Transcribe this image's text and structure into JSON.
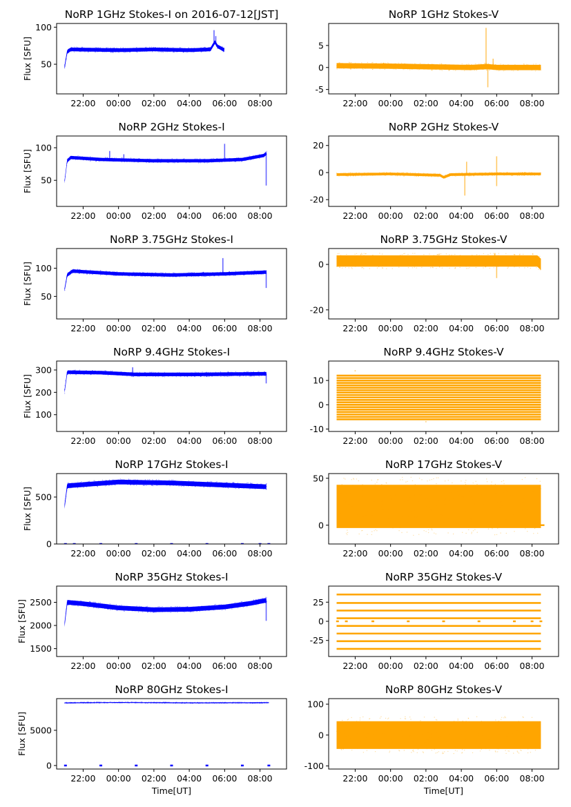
{
  "figure": {
    "xtick_labels": [
      "22:00",
      "00:00",
      "02:00",
      "04:00",
      "06:00",
      "08:00"
    ],
    "xlabel": "Time[UT]",
    "ylabel_I": "Flux [SFU]",
    "colors": {
      "stokes_i": "#0000ff",
      "stokes_v": "#ffa500",
      "axes": "#000000"
    }
  },
  "chart_data": [
    {
      "id": "i1",
      "type": "scatter",
      "title": "NoRP 1GHz Stokes-I on 2016-07-12[JST]",
      "ylabel": "Flux [SFU]",
      "xlabel": "",
      "ylim": [
        10,
        105
      ],
      "yticks": [
        50,
        100
      ],
      "x_range": [
        "20:57",
        "06:00"
      ],
      "series": [
        {
          "baseline": [
            [
              20.95,
              46
            ],
            [
              21.1,
              67
            ],
            [
              21.3,
              70
            ],
            [
              24,
              69
            ],
            [
              26,
              70
            ],
            [
              28,
              69
            ],
            [
              29.2,
              70
            ],
            [
              29.45,
              80
            ],
            [
              29.6,
              74
            ],
            [
              30.0,
              69
            ]
          ],
          "spread": 2.5,
          "spikes": [
            [
              29.4,
              96
            ],
            [
              29.5,
              88
            ]
          ]
        }
      ]
    },
    {
      "id": "v1",
      "type": "scatter",
      "title": "NoRP 1GHz Stokes-V",
      "ylabel": "",
      "xlabel": "",
      "ylim": [
        -6,
        10
      ],
      "yticks": [
        -5,
        0,
        5
      ],
      "x_range": [
        "20:57",
        "08:30"
      ],
      "series": [
        {
          "baseline": [
            [
              20.95,
              0.4
            ],
            [
              24,
              0.3
            ],
            [
              27,
              0.1
            ],
            [
              28.5,
              0.0
            ],
            [
              29.5,
              0.2
            ],
            [
              30.0,
              0.0
            ],
            [
              32.5,
              0.0
            ]
          ],
          "spread": 0.6,
          "spikes": [
            [
              29.4,
              9
            ],
            [
              29.5,
              -4.5
            ],
            [
              29.8,
              2
            ]
          ]
        }
      ]
    },
    {
      "id": "i2",
      "type": "scatter",
      "title": "NoRP 2GHz Stokes-I",
      "ylabel": "Flux [SFU]",
      "xlabel": "",
      "ylim": [
        10,
        118
      ],
      "yticks": [
        50,
        100
      ],
      "x_range": [
        "20:57",
        "08:23"
      ],
      "series": [
        {
          "baseline": [
            [
              20.95,
              48
            ],
            [
              21.1,
              80
            ],
            [
              21.3,
              85
            ],
            [
              23,
              82
            ],
            [
              26,
              80
            ],
            [
              29,
              80
            ],
            [
              31,
              82
            ],
            [
              32.2,
              88
            ],
            [
              32.4,
              92
            ]
          ],
          "spread": 2.5,
          "spikes": [
            [
              23.5,
              95
            ],
            [
              24.3,
              90
            ],
            [
              30.0,
              106
            ],
            [
              32.35,
              42
            ]
          ]
        }
      ]
    },
    {
      "id": "v2",
      "type": "scatter",
      "title": "NoRP 2GHz Stokes-V",
      "ylabel": "",
      "xlabel": "",
      "ylim": [
        -25,
        27
      ],
      "yticks": [
        -20,
        0,
        20
      ],
      "x_range": [
        "20:57",
        "08:30"
      ],
      "series": [
        {
          "baseline": [
            [
              20.95,
              -1.5
            ],
            [
              24,
              -1
            ],
            [
              26.8,
              -2
            ],
            [
              27.0,
              -3.5
            ],
            [
              27.4,
              -1.5
            ],
            [
              30,
              -1
            ],
            [
              32.5,
              -1
            ]
          ],
          "spread": 1,
          "spikes": [
            [
              28.2,
              -17
            ],
            [
              28.3,
              8
            ],
            [
              30.0,
              12
            ],
            [
              30.0,
              -10
            ]
          ]
        }
      ]
    },
    {
      "id": "i3",
      "type": "scatter",
      "title": "NoRP 3.75GHz Stokes-I",
      "ylabel": "Flux [SFU]",
      "xlabel": "",
      "ylim": [
        10,
        135
      ],
      "yticks": [
        50,
        100
      ],
      "x_range": [
        "20:57",
        "08:23"
      ],
      "series": [
        {
          "baseline": [
            [
              20.95,
              62
            ],
            [
              21.1,
              88
            ],
            [
              21.4,
              95
            ],
            [
              24,
              90
            ],
            [
              27,
              88
            ],
            [
              30,
              90
            ],
            [
              32.3,
              93
            ]
          ],
          "spread": 3,
          "spikes": [
            [
              29.9,
              118
            ],
            [
              32.35,
              65
            ]
          ]
        }
      ]
    },
    {
      "id": "v3",
      "type": "scatter",
      "title": "NoRP 3.75GHz Stokes-V",
      "ylabel": "",
      "xlabel": "",
      "ylim": [
        -24,
        7
      ],
      "yticks": [
        -20,
        0
      ],
      "x_range": [
        "20:57",
        "08:30"
      ],
      "series": [
        {
          "baseline": [
            [
              20.95,
              1.5
            ],
            [
              32.3,
              1.5
            ],
            [
              32.5,
              0
            ]
          ],
          "spread": 2.5,
          "spikes": [
            [
              30.0,
              -6
            ],
            [
              29.9,
              5
            ]
          ]
        }
      ]
    },
    {
      "id": "i4",
      "type": "scatter",
      "title": "NoRP 9.4GHz Stokes-I",
      "ylabel": "Flux [SFU]",
      "xlabel": "",
      "ylim": [
        25,
        340
      ],
      "yticks": [
        100,
        200,
        300
      ],
      "x_range": [
        "20:57",
        "08:23"
      ],
      "series": [
        {
          "baseline": [
            [
              20.95,
              205
            ],
            [
              21.1,
              290
            ],
            [
              23,
              288
            ],
            [
              25,
              280
            ],
            [
              28,
              280
            ],
            [
              32.3,
              283
            ]
          ],
          "spread": 8,
          "spikes": [
            [
              24.8,
              312
            ],
            [
              32.35,
              240
            ]
          ]
        }
      ]
    },
    {
      "id": "v4",
      "type": "scatter",
      "title": "NoRP 9.4GHz Stokes-V",
      "ylabel": "",
      "xlabel": "",
      "ylim": [
        -11,
        18
      ],
      "yticks": [
        -10,
        0,
        10
      ],
      "x_range": [
        "20:57",
        "08:30"
      ],
      "series": [
        {
          "levels": [
            -6,
            -5,
            -4,
            -3,
            -2,
            -1,
            0,
            1,
            2,
            3,
            4,
            5,
            6,
            7,
            8,
            9,
            10,
            11,
            12
          ],
          "spread": 0,
          "spikes": [
            [
              22,
              14
            ],
            [
              26,
              -7
            ]
          ]
        }
      ]
    },
    {
      "id": "i5",
      "type": "scatter",
      "title": "NoRP 17GHz Stokes-I",
      "ylabel": "Flux [SFU]",
      "xlabel": "",
      "ylim": [
        0,
        750
      ],
      "yticks": [
        0,
        500
      ],
      "x_range": [
        "20:57",
        "08:23"
      ],
      "series": [
        {
          "baseline": [
            [
              20.95,
              400
            ],
            [
              21.1,
              620
            ],
            [
              24,
              660
            ],
            [
              27,
              650
            ],
            [
              32.3,
              610
            ]
          ],
          "spread": 25,
          "zero_marks": [
            21,
            21.5,
            23,
            25,
            27,
            29,
            31,
            32,
            32.5
          ]
        }
      ]
    },
    {
      "id": "v5",
      "type": "scatter",
      "title": "NoRP 17GHz Stokes-V",
      "ylabel": "",
      "xlabel": "",
      "ylim": [
        -20,
        55
      ],
      "yticks": [
        0,
        50
      ],
      "x_range": [
        "20:57",
        "08:30"
      ],
      "series": [
        {
          "baseline": [
            [
              20.95,
              20
            ],
            [
              32.3,
              20
            ]
          ],
          "spread": 23,
          "zero_line": true
        }
      ]
    },
    {
      "id": "i6",
      "type": "scatter",
      "title": "NoRP 35GHz Stokes-I",
      "ylabel": "Flux [SFU]",
      "xlabel": "",
      "ylim": [
        1330,
        2850
      ],
      "yticks": [
        1500,
        2000,
        2500
      ],
      "x_range": [
        "20:57",
        "08:23"
      ],
      "series": [
        {
          "baseline": [
            [
              20.95,
              2020
            ],
            [
              21.1,
              2500
            ],
            [
              22,
              2470
            ],
            [
              24,
              2380
            ],
            [
              26,
              2340
            ],
            [
              28,
              2350
            ],
            [
              30,
              2400
            ],
            [
              31.5,
              2480
            ],
            [
              32.3,
              2540
            ]
          ],
          "spread": 50,
          "spikes": [
            [
              32.35,
              2100
            ]
          ]
        }
      ]
    },
    {
      "id": "v6",
      "type": "scatter",
      "title": "NoRP 35GHz Stokes-V",
      "ylabel": "",
      "xlabel": "",
      "ylim": [
        -46,
        46
      ],
      "yticks": [
        -25,
        0,
        25
      ],
      "x_range": [
        "20:57",
        "08:30"
      ],
      "series": [
        {
          "levels": [
            -36,
            -26,
            -16,
            -6,
            4,
            14,
            24,
            35
          ],
          "spread": 0,
          "zero_marks": [
            21,
            21.5,
            23,
            25,
            27,
            29,
            31,
            32,
            32.5
          ]
        }
      ]
    },
    {
      "id": "i7",
      "type": "scatter",
      "title": "NoRP 80GHz Stokes-I",
      "ylabel": "Flux [SFU]",
      "xlabel": "Time[UT]",
      "ylim": [
        -500,
        9500
      ],
      "yticks": [
        0,
        5000
      ],
      "x_range": [
        "20:57",
        "08:30"
      ],
      "series": [
        {
          "baseline": [
            [
              20.95,
              8900
            ],
            [
              24,
              8950
            ],
            [
              28,
              8900
            ],
            [
              32.5,
              8920
            ]
          ],
          "spread": 60,
          "zero_marks": [
            21,
            23,
            25,
            27,
            29,
            31,
            32.5
          ]
        }
      ]
    },
    {
      "id": "v7",
      "type": "scatter",
      "title": "NoRP 80GHz Stokes-V",
      "ylabel": "",
      "xlabel": "Time[UT]",
      "ylim": [
        -110,
        118
      ],
      "yticks": [
        -100,
        0,
        100
      ],
      "x_range": [
        "20:57",
        "08:30"
      ],
      "series": [
        {
          "baseline": [
            [
              20.95,
              0
            ],
            [
              32.5,
              0
            ]
          ],
          "spread": 45
        }
      ]
    }
  ]
}
